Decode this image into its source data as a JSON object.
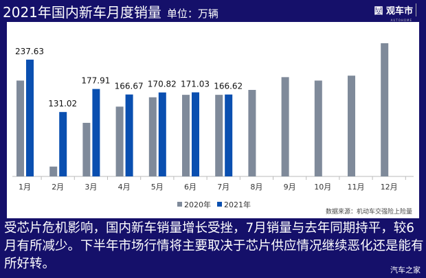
{
  "header": {
    "title": "2021年国内新车月度销量",
    "unit": "单位：万辆",
    "logo": "汽车之家",
    "logo_sub": "AUTOHOME"
  },
  "chart_data": {
    "type": "bar",
    "title": "2021年国内新车月度销量",
    "categories": [
      "1月",
      "2月",
      "3月",
      "4月",
      "5月",
      "6月",
      "7月",
      "8月",
      "9月",
      "10月",
      "11月",
      "12月"
    ],
    "series": [
      {
        "name": "2020年",
        "color": "#7f8a9a",
        "values": [
          195,
          20,
          109,
          142,
          161,
          166,
          166,
          176,
          202,
          195,
          205,
          271
        ]
      },
      {
        "name": "2021年",
        "color": "#0a4fb0",
        "values": [
          237.63,
          131.02,
          177.91,
          166.67,
          170.82,
          171.03,
          166.62,
          null,
          null,
          null,
          null,
          null
        ]
      }
    ],
    "data_labels": [
      "237.63",
      "131.02",
      "177.91",
      "166.67",
      "170.82",
      "171.03",
      "166.62"
    ],
    "ylim": [
      0,
      290
    ],
    "legend": "bottom",
    "grid": false,
    "source": "数据来源：机动车交强险上险量"
  },
  "caption": "受芯片危机影响，国内新车销量增长受挫，7月销量与去年同期持平，较6月有所减少。下半年市场行情将主要取决于芯片供应情况继续恶化还是能有所好转。",
  "watermark": "汽车之家"
}
